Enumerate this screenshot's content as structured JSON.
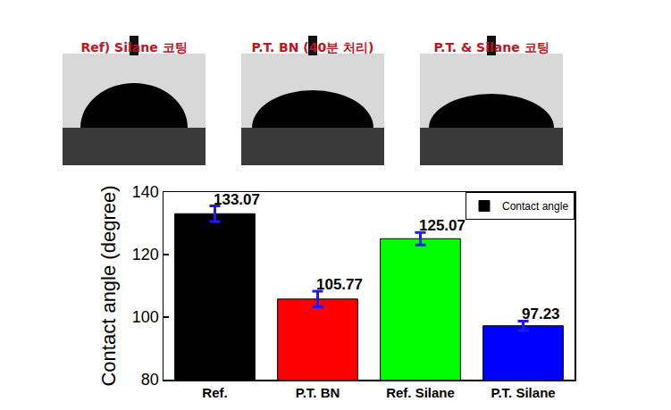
{
  "photos": {
    "labels": [
      "Ref) Silane 코팅",
      "P.T. BN (40분 처리)",
      "P.T. & Silane 코팅"
    ]
  },
  "chart_data": {
    "type": "bar",
    "categories": [
      "Ref.",
      "P.T. BN",
      "Ref. Silane",
      "P.T. Silane"
    ],
    "series": [
      {
        "name": "Contact angle",
        "values": [
          133.07,
          105.77,
          125.07,
          97.23
        ],
        "error": [
          2.5,
          2.5,
          2.0,
          1.5
        ]
      }
    ],
    "colors": [
      "#000000",
      "#ff0000",
      "#00ff00",
      "#0000ff"
    ],
    "y_label": "Contact angle (degree)",
    "ylim": [
      80,
      140
    ],
    "yticks": [
      80,
      100,
      120,
      140
    ],
    "data_labels": true,
    "legend": "upper right",
    "grid": false
  }
}
